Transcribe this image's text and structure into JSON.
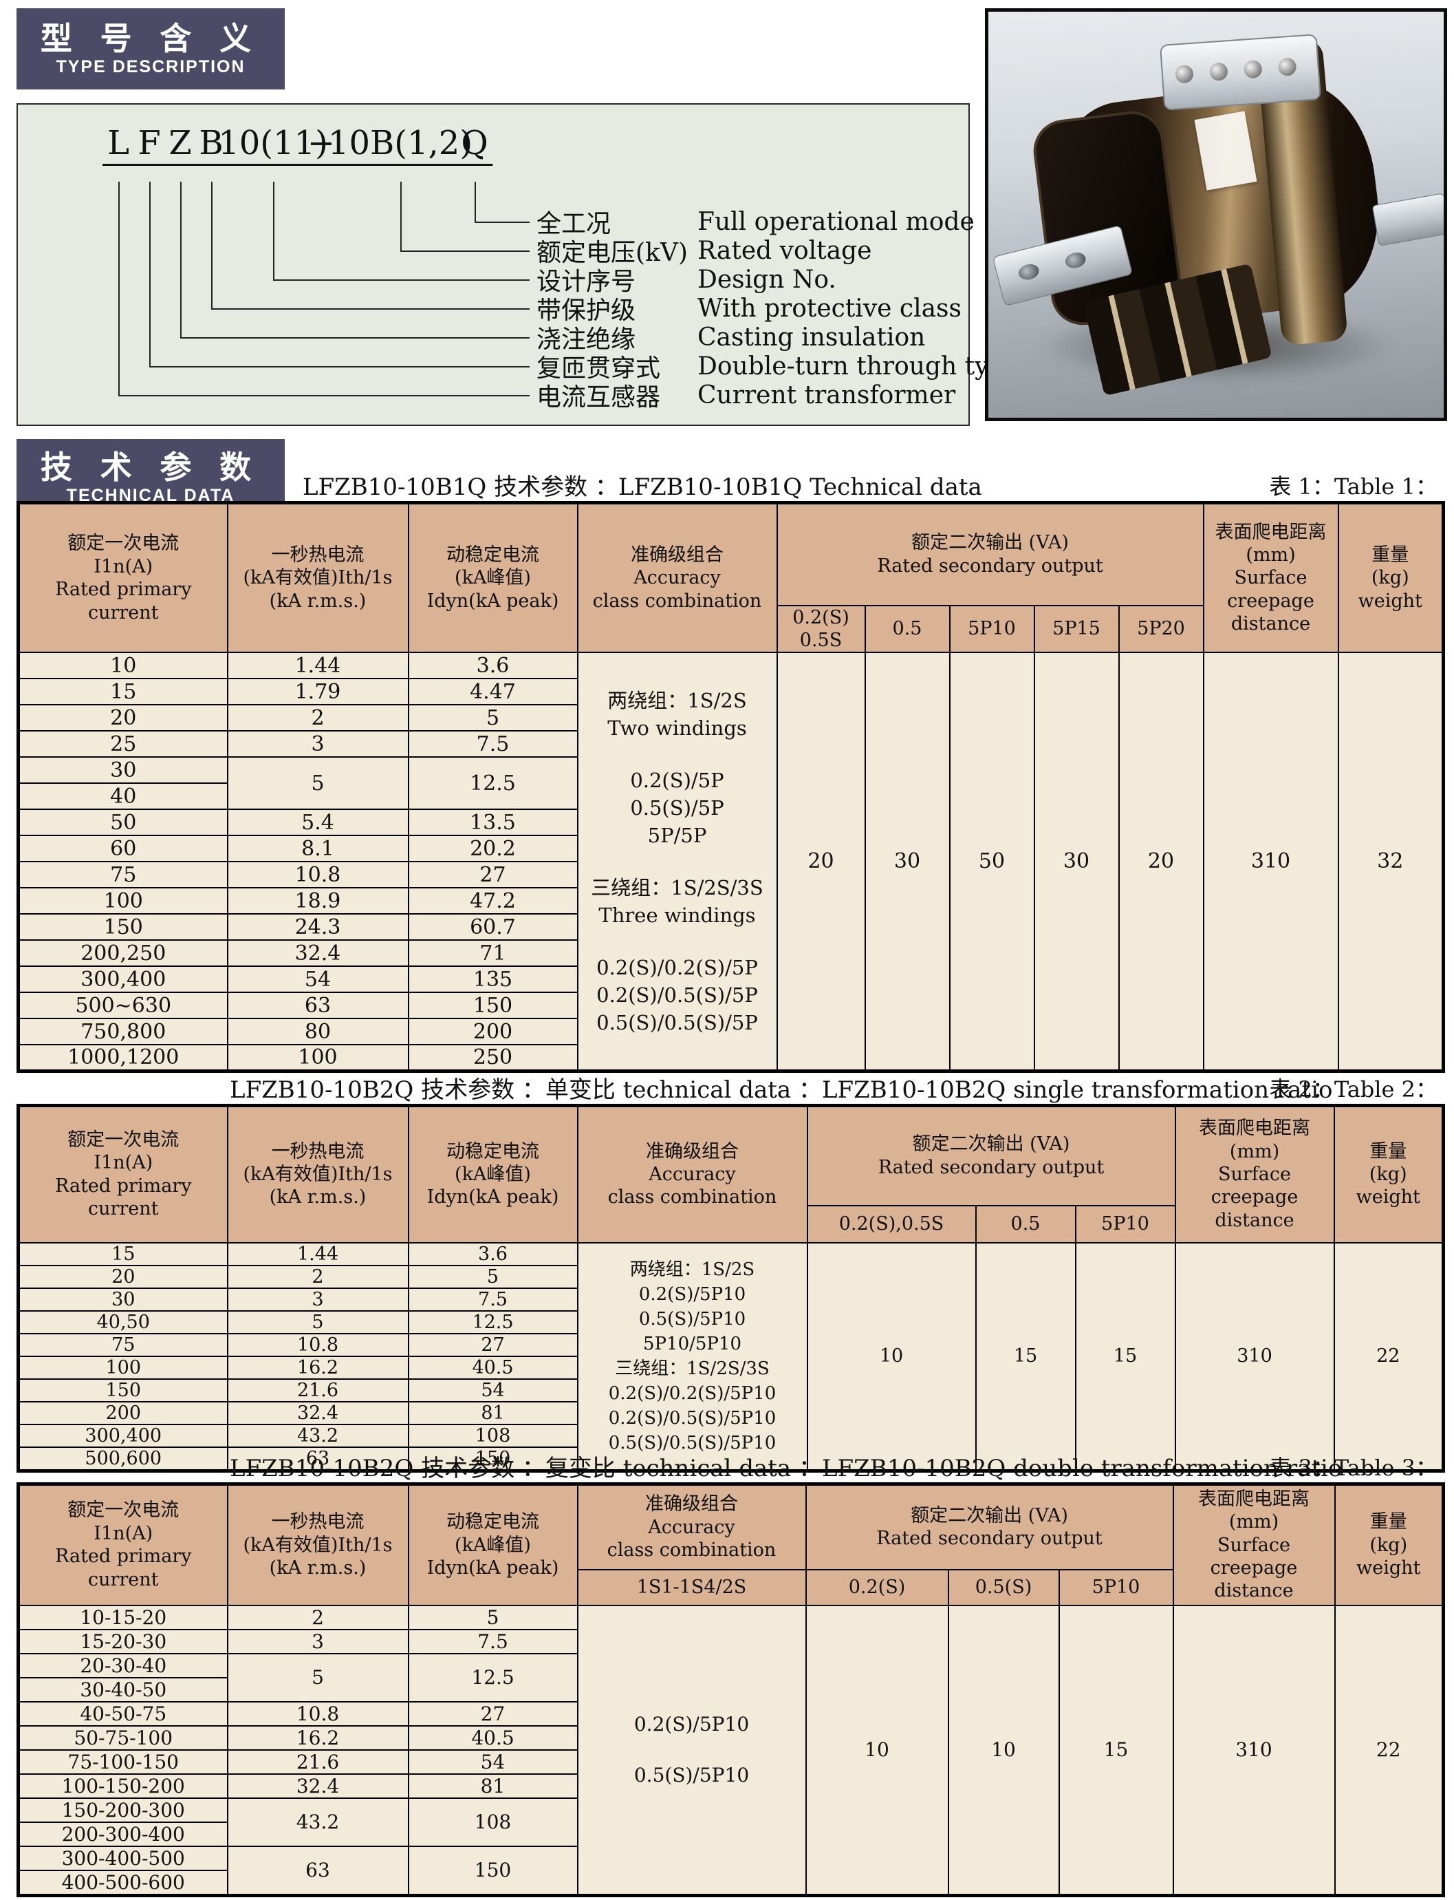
{
  "colors": {
    "badge_bg": "#4c4b67",
    "header_tan": "#d9b394",
    "cell_cream": "#f2ebda",
    "panel_bg": "#e7e9e3"
  },
  "badges": {
    "type_zh": "型 号 含 义",
    "type_en": "TYPE DESCRIPTION",
    "tech_zh": "技 术 参 数",
    "tech_en": "TECHNICAL DATA"
  },
  "type_diagram": {
    "tokens": [
      "L",
      "F",
      "Z",
      "B",
      "10(11)",
      "−",
      "10B(1,2)",
      "Q"
    ],
    "labels": [
      {
        "zh": "全工况",
        "en": "Full operational mode"
      },
      {
        "zh": "额定电压(kV)",
        "en": "Rated voltage"
      },
      {
        "zh": "设计序号",
        "en": "Design No."
      },
      {
        "zh": "带保护级",
        "en": "With protective class"
      },
      {
        "zh": "浇注绝缘",
        "en": "Casting insulation"
      },
      {
        "zh": "复匝贯穿式",
        "en": "Double-turn through type"
      },
      {
        "zh": "电流互感器",
        "en": "Current transformer"
      }
    ]
  },
  "tables": {
    "t1": {
      "title": "LFZB10-10B1Q 技术参数 ：LFZB10-10B1Q Technical data",
      "tag": "表 1：Table 1：",
      "headers": {
        "primary": [
          "额定一次电流",
          "I1n(A)",
          "Rated primary",
          "current"
        ],
        "thermal": [
          "一秒热电流",
          "(kA有效值)Ith/1s",
          "(kA r.m.s.)"
        ],
        "dynamic": [
          "动稳定电流",
          "(kA峰值)",
          "Idyn(kA peak)"
        ],
        "accuracy": [
          "准确级组合",
          "Accuracy",
          "class combination"
        ],
        "va": [
          "额定二次输出 (VA)",
          "Rated secondary output"
        ],
        "va_subs": [
          [
            "0.2(S)",
            "0.5S"
          ],
          "0.5",
          "5P10",
          "5P15",
          "5P20"
        ],
        "creepage": [
          "表面爬电距离",
          "(mm)",
          "Surface",
          "creepage",
          "distance"
        ],
        "weight": [
          "重量",
          "(kg)",
          "weight"
        ]
      },
      "rows": [
        {
          "c": [
            "10",
            "1.44",
            "3.6"
          ]
        },
        {
          "c": [
            "15",
            "1.79",
            "4.47"
          ]
        },
        {
          "c": [
            "20",
            "2",
            "5"
          ]
        },
        {
          "c": [
            "25",
            "3",
            "7.5"
          ]
        },
        {
          "c": [
            "30",
            "5",
            "12.5"
          ],
          "span": 2
        },
        {
          "c": [
            "40"
          ]
        },
        {
          "c": [
            "50",
            "5.4",
            "13.5"
          ]
        },
        {
          "c": [
            "60",
            "8.1",
            "20.2"
          ]
        },
        {
          "c": [
            "75",
            "10.8",
            "27"
          ]
        },
        {
          "c": [
            "100",
            "18.9",
            "47.2"
          ]
        },
        {
          "c": [
            "150",
            "24.3",
            "60.7"
          ]
        },
        {
          "c": [
            "200,250",
            "32.4",
            "71"
          ]
        },
        {
          "c": [
            "300,400",
            "54",
            "135"
          ]
        },
        {
          "c": [
            "500~630",
            "63",
            "150"
          ]
        },
        {
          "c": [
            "750,800",
            "80",
            "200"
          ]
        },
        {
          "c": [
            "1000,1200",
            "100",
            "250"
          ]
        }
      ],
      "accuracy_lines": [
        "两绕组：1S/2S",
        "Two windings",
        "",
        "0.2(S)/5P",
        "0.5(S)/5P",
        "5P/5P",
        "",
        "三绕组：1S/2S/3S",
        "Three windings",
        "",
        "0.2(S)/0.2(S)/5P",
        "0.2(S)/0.5(S)/5P",
        "0.5(S)/0.5(S)/5P"
      ],
      "va_values": [
        "20",
        "30",
        "50",
        "30",
        "20"
      ],
      "creepage_value": "310",
      "weight_value": "32"
    },
    "t2": {
      "title": "LFZB10-10B2Q 技术参数 ：单变比    technical data ：LFZB10-10B2Q single transformation ratio",
      "tag": "表 2：Table 2：",
      "headers": {
        "primary": [
          "额定一次电流",
          "I1n(A)",
          "Rated primary",
          "current"
        ],
        "thermal": [
          "一秒热电流",
          "(kA有效值)Ith/1s",
          "(kA r.m.s.)"
        ],
        "dynamic": [
          "动稳定电流",
          "(kA峰值)",
          "Idyn(kA peak)"
        ],
        "accuracy": [
          "准确级组合",
          "Accuracy",
          "class combination"
        ],
        "va": [
          "额定二次输出 (VA)",
          "Rated secondary output"
        ],
        "va_subs": [
          "0.2(S),0.5S",
          "0.5",
          "5P10"
        ],
        "creepage": [
          "表面爬电距离",
          "(mm)",
          "Surface",
          "creepage",
          "distance"
        ],
        "weight": [
          "重量",
          "(kg)",
          "weight"
        ]
      },
      "rows": [
        {
          "c": [
            "15",
            "1.44",
            "3.6"
          ]
        },
        {
          "c": [
            "20",
            "2",
            "5"
          ]
        },
        {
          "c": [
            "30",
            "3",
            "7.5"
          ]
        },
        {
          "c": [
            "40,50",
            "5",
            "12.5"
          ]
        },
        {
          "c": [
            "75",
            "10.8",
            "27"
          ]
        },
        {
          "c": [
            "100",
            "16.2",
            "40.5"
          ]
        },
        {
          "c": [
            "150",
            "21.6",
            "54"
          ]
        },
        {
          "c": [
            "200",
            "32.4",
            "81"
          ]
        },
        {
          "c": [
            "300,400",
            "43.2",
            "108"
          ]
        },
        {
          "c": [
            "500,600",
            "63",
            "150"
          ]
        }
      ],
      "accuracy_lines": [
        "两绕组：1S/2S",
        "0.2(S)/5P10",
        "0.5(S)/5P10",
        "5P10/5P10",
        "三绕组：1S/2S/3S",
        "0.2(S)/0.2(S)/5P10",
        "0.2(S)/0.5(S)/5P10",
        "0.5(S)/0.5(S)/5P10"
      ],
      "va_values": [
        "10",
        "15",
        "15"
      ],
      "creepage_value": "310",
      "weight_value": "22"
    },
    "t3": {
      "title": "LFZB10-10B2Q 技术参数 ：复变比    technical data ：LFZB10-10B2Q double transformation ratio",
      "tag": "表 3：Table 3：",
      "headers": {
        "primary": [
          "额定一次电流",
          "I1n(A)",
          "Rated primary",
          "current"
        ],
        "thermal": [
          "一秒热电流",
          "(kA有效值)Ith/1s",
          "(kA r.m.s.)"
        ],
        "dynamic": [
          "动稳定电流",
          "(kA峰值)",
          "Idyn(kA peak)"
        ],
        "accuracy": [
          "准确级组合",
          "Accuracy",
          "class combination"
        ],
        "accuracy_sub": "1S1-1S4/2S",
        "va": [
          "额定二次输出 (VA)",
          "Rated secondary output"
        ],
        "va_subs": [
          "0.2(S)",
          "0.5(S)",
          "5P10"
        ],
        "creepage": [
          "表面爬电距离",
          "(mm)",
          "Surface",
          "creepage",
          "distance"
        ],
        "weight": [
          "重量",
          "(kg)",
          "weight"
        ]
      },
      "rows": [
        {
          "c": [
            "10-15-20",
            "2",
            "5"
          ]
        },
        {
          "c": [
            "15-20-30",
            "3",
            "7.5"
          ]
        },
        {
          "c": [
            "20-30-40",
            "5",
            "12.5"
          ],
          "span": 2
        },
        {
          "c": [
            "30-40-50"
          ]
        },
        {
          "c": [
            "40-50-75",
            "10.8",
            "27"
          ]
        },
        {
          "c": [
            "50-75-100",
            "16.2",
            "40.5"
          ]
        },
        {
          "c": [
            "75-100-150",
            "21.6",
            "54"
          ]
        },
        {
          "c": [
            "100-150-200",
            "32.4",
            "81"
          ]
        },
        {
          "c": [
            "150-200-300",
            "43.2",
            "108"
          ],
          "span": 2
        },
        {
          "c": [
            "200-300-400"
          ]
        },
        {
          "c": [
            "300-400-500",
            "63",
            "150"
          ],
          "span": 2
        },
        {
          "c": [
            "400-500-600"
          ]
        }
      ],
      "accuracy_lines": [
        "0.2(S)/5P10",
        "",
        "0.5(S)/5P10"
      ],
      "va_values": [
        "10",
        "10",
        "15"
      ],
      "creepage_value": "310",
      "weight_value": "22"
    }
  }
}
